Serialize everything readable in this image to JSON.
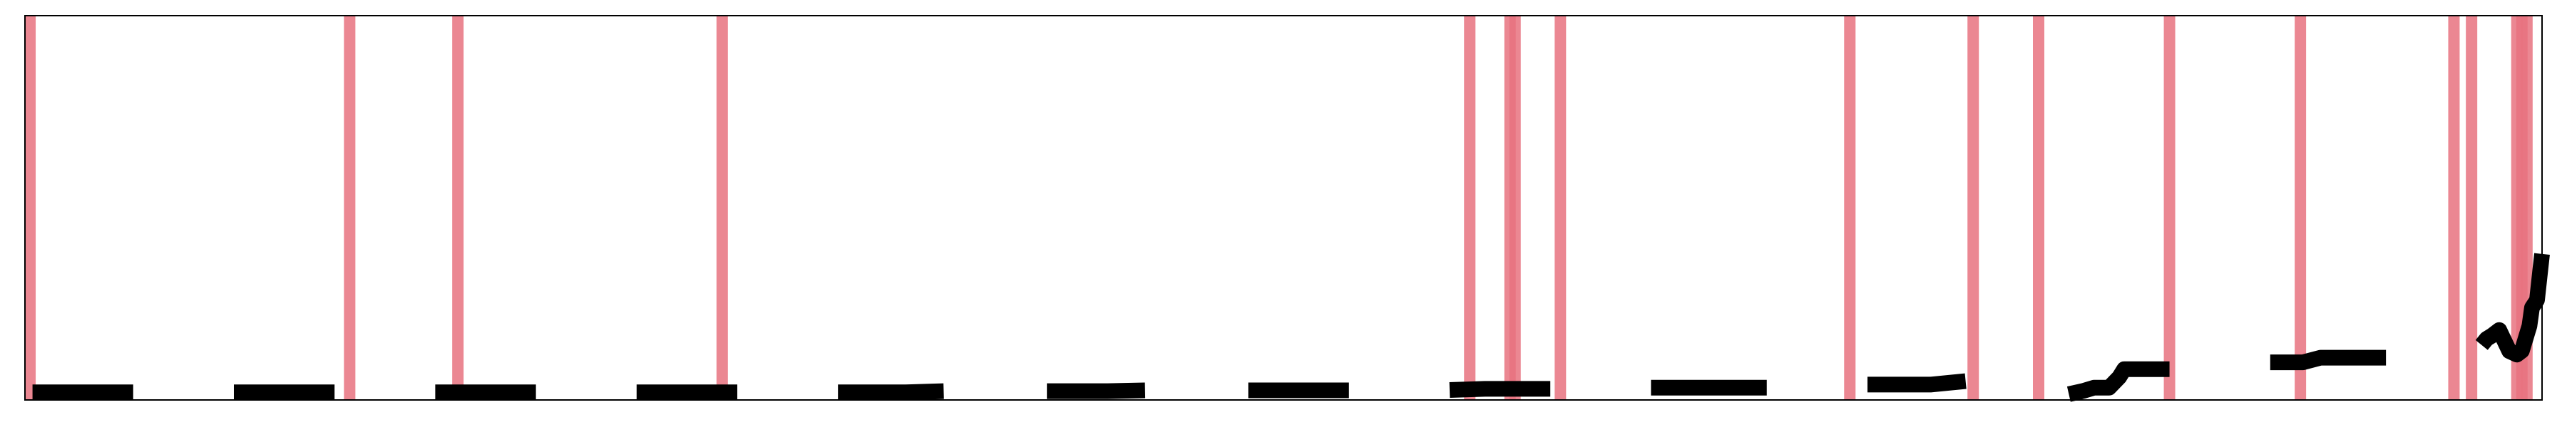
{
  "chart_data": {
    "type": "line",
    "title": "",
    "xlabel": "",
    "ylabel": "",
    "grid": false,
    "legend": "none",
    "colors": {
      "line": "#000000",
      "vline": "#e8727f",
      "frame": "#000000",
      "background": "#ffffff"
    },
    "xlim": [
      0,
      1000
    ],
    "ylim": [
      0,
      100
    ],
    "vertical_lines": [
      2,
      129,
      172,
      277,
      574,
      590,
      592,
      610,
      725,
      774,
      800,
      852,
      904,
      965,
      972,
      990,
      992,
      994
    ],
    "series": [
      {
        "segments": [
          {
            "x": [
              3,
              43
            ],
            "y": [
              2,
              2
            ]
          },
          {
            "x": [
              83,
              123
            ],
            "y": [
              2,
              2
            ]
          },
          {
            "x": [
              163,
              203
            ],
            "y": [
              2,
              2
            ]
          },
          {
            "x": [
              243,
              283
            ],
            "y": [
              2,
              2
            ]
          },
          {
            "x": [
              323,
              350,
              365
            ],
            "y": [
              2,
              2,
              2.3
            ]
          },
          {
            "x": [
              406,
              430,
              445
            ],
            "y": [
              2.3,
              2.3,
              2.5
            ]
          },
          {
            "x": [
              486,
              526
            ],
            "y": [
              2.5,
              2.5
            ]
          },
          {
            "x": [
              566,
              580,
              606
            ],
            "y": [
              2.6,
              2.9,
              2.9
            ]
          },
          {
            "x": [
              646,
              692
            ],
            "y": [
              3.2,
              3.2
            ]
          },
          {
            "x": [
              732,
              757,
              771
            ],
            "y": [
              4.0,
              4.0,
              4.9
            ]
          },
          {
            "x": [
              812,
              818,
              822,
              828,
              832,
              834,
              852
            ],
            "y": [
              1.5,
              2.4,
              3.2,
              3.2,
              5.9,
              8.0,
              8.0
            ]
          },
          {
            "x": [
              892,
              905,
              912,
              938
            ],
            "y": [
              9.8,
              9.8,
              11.0,
              11.0
            ]
          },
          {
            "x": [
              976,
              978,
              980,
              983,
              987,
              990,
              992,
              995,
              996,
              998,
              999,
              1000
            ],
            "y": [
              14.3,
              15.9,
              16.7,
              18.2,
              12.7,
              11.8,
              12.8,
              19.3,
              24.0,
              26.0,
              32.0,
              38.0
            ]
          }
        ]
      }
    ]
  }
}
